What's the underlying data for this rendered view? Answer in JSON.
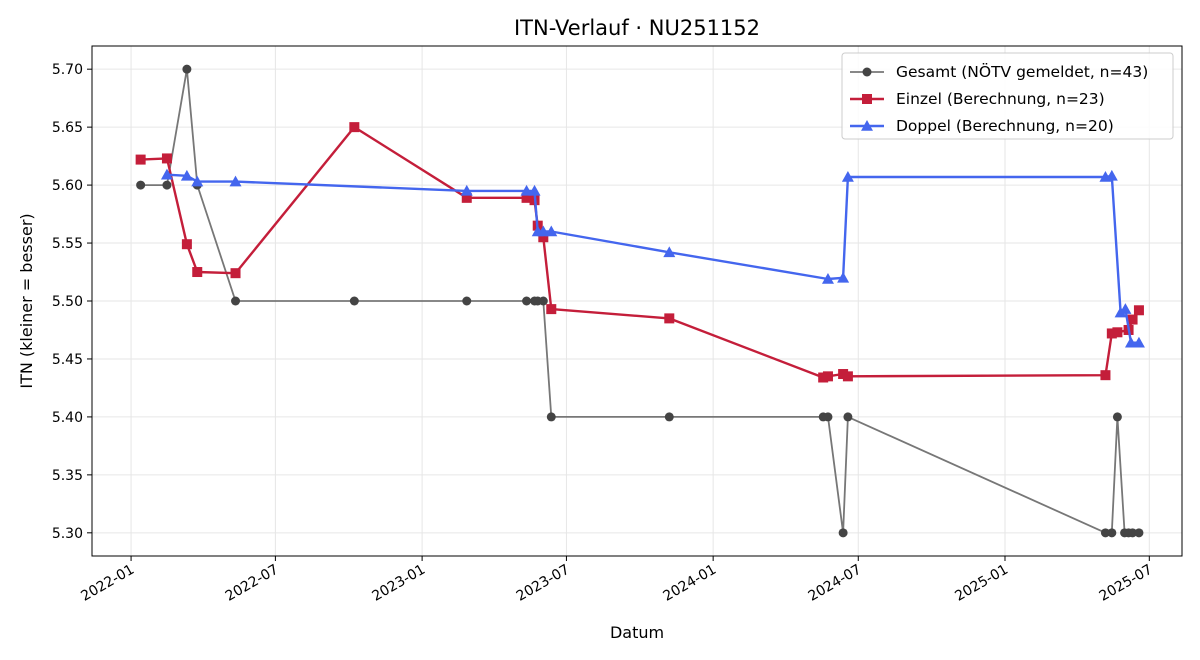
{
  "chart_data": {
    "type": "line",
    "title": "ITN-Verlauf · NU251152",
    "xlabel": "Datum",
    "ylabel": "ITN  (kleiner = besser)",
    "x_axis_type": "date",
    "xlim": [
      "2021-11-13",
      "2025-08-11"
    ],
    "ylim": [
      5.28,
      5.72
    ],
    "y_ticks": [
      5.3,
      5.35,
      5.4,
      5.45,
      5.5,
      5.55,
      5.6,
      5.65,
      5.7
    ],
    "x_ticks": [
      {
        "date": "2022-01-01",
        "label": "2022-01"
      },
      {
        "date": "2022-07-01",
        "label": "2022-07"
      },
      {
        "date": "2023-01-01",
        "label": "2023-01"
      },
      {
        "date": "2023-07-01",
        "label": "2023-07"
      },
      {
        "date": "2024-01-01",
        "label": "2024-01"
      },
      {
        "date": "2024-07-01",
        "label": "2024-07"
      },
      {
        "date": "2025-01-01",
        "label": "2025-01"
      },
      {
        "date": "2025-07-01",
        "label": "2025-07"
      }
    ],
    "grid": true,
    "legend_position": "top-right",
    "series": [
      {
        "name": "Gesamt (NÖTV gemeldet, n=43)",
        "color": "#777777",
        "marker_color": "#444444",
        "marker": "circle",
        "points": [
          [
            "2022-01-13",
            5.6
          ],
          [
            "2022-02-15",
            5.6
          ],
          [
            "2022-03-12",
            5.7
          ],
          [
            "2022-03-25",
            5.6
          ],
          [
            "2022-05-12",
            5.5
          ],
          [
            "2022-10-08",
            5.5
          ],
          [
            "2023-02-26",
            5.5
          ],
          [
            "2023-05-12",
            5.5
          ],
          [
            "2023-05-22",
            5.5
          ],
          [
            "2023-05-26",
            5.5
          ],
          [
            "2023-06-02",
            5.5
          ],
          [
            "2023-06-12",
            5.4
          ],
          [
            "2023-11-07",
            5.4
          ],
          [
            "2024-05-18",
            5.4
          ],
          [
            "2024-05-24",
            5.4
          ],
          [
            "2024-06-12",
            5.3
          ],
          [
            "2024-06-18",
            5.4
          ],
          [
            "2025-05-07",
            5.3
          ],
          [
            "2025-05-15",
            5.3
          ],
          [
            "2025-05-22",
            5.4
          ],
          [
            "2025-05-31",
            5.3
          ],
          [
            "2025-06-05",
            5.3
          ],
          [
            "2025-06-10",
            5.3
          ],
          [
            "2025-06-18",
            5.3
          ]
        ]
      },
      {
        "name": "Einzel (Berechnung, n=23)",
        "color": "#c41e3a",
        "marker_color": "#c41e3a",
        "marker": "square",
        "points": [
          [
            "2022-01-13",
            5.622
          ],
          [
            "2022-02-15",
            5.623
          ],
          [
            "2022-03-12",
            5.549
          ],
          [
            "2022-03-25",
            5.525
          ],
          [
            "2022-05-12",
            5.524
          ],
          [
            "2022-10-08",
            5.65
          ],
          [
            "2023-02-26",
            5.589
          ],
          [
            "2023-05-12",
            5.589
          ],
          [
            "2023-05-22",
            5.587
          ],
          [
            "2023-05-26",
            5.565
          ],
          [
            "2023-06-02",
            5.555
          ],
          [
            "2023-06-12",
            5.493
          ],
          [
            "2023-11-07",
            5.485
          ],
          [
            "2024-05-18",
            5.434
          ],
          [
            "2024-05-24",
            5.435
          ],
          [
            "2024-06-12",
            5.437
          ],
          [
            "2024-06-18",
            5.435
          ],
          [
            "2025-05-07",
            5.436
          ],
          [
            "2025-05-15",
            5.472
          ],
          [
            "2025-05-22",
            5.473
          ],
          [
            "2025-06-05",
            5.475
          ],
          [
            "2025-06-10",
            5.484
          ],
          [
            "2025-06-18",
            5.492
          ]
        ]
      },
      {
        "name": "Doppel (Berechnung, n=20)",
        "color": "#4466ee",
        "marker_color": "#4466ee",
        "marker": "triangle",
        "points": [
          [
            "2022-02-15",
            5.609
          ],
          [
            "2022-03-12",
            5.608
          ],
          [
            "2022-03-25",
            5.603
          ],
          [
            "2022-05-12",
            5.603
          ],
          [
            "2023-02-26",
            5.595
          ],
          [
            "2023-05-12",
            5.595
          ],
          [
            "2023-05-22",
            5.595
          ],
          [
            "2023-05-26",
            5.56
          ],
          [
            "2023-06-02",
            5.56
          ],
          [
            "2023-06-12",
            5.56
          ],
          [
            "2023-11-07",
            5.542
          ],
          [
            "2024-05-24",
            5.519
          ],
          [
            "2024-06-12",
            5.52
          ],
          [
            "2024-06-18",
            5.607
          ],
          [
            "2025-05-07",
            5.607
          ],
          [
            "2025-05-15",
            5.608
          ],
          [
            "2025-05-26",
            5.49
          ],
          [
            "2025-06-01",
            5.493
          ],
          [
            "2025-06-08",
            5.464
          ],
          [
            "2025-06-18",
            5.464
          ]
        ]
      }
    ]
  }
}
